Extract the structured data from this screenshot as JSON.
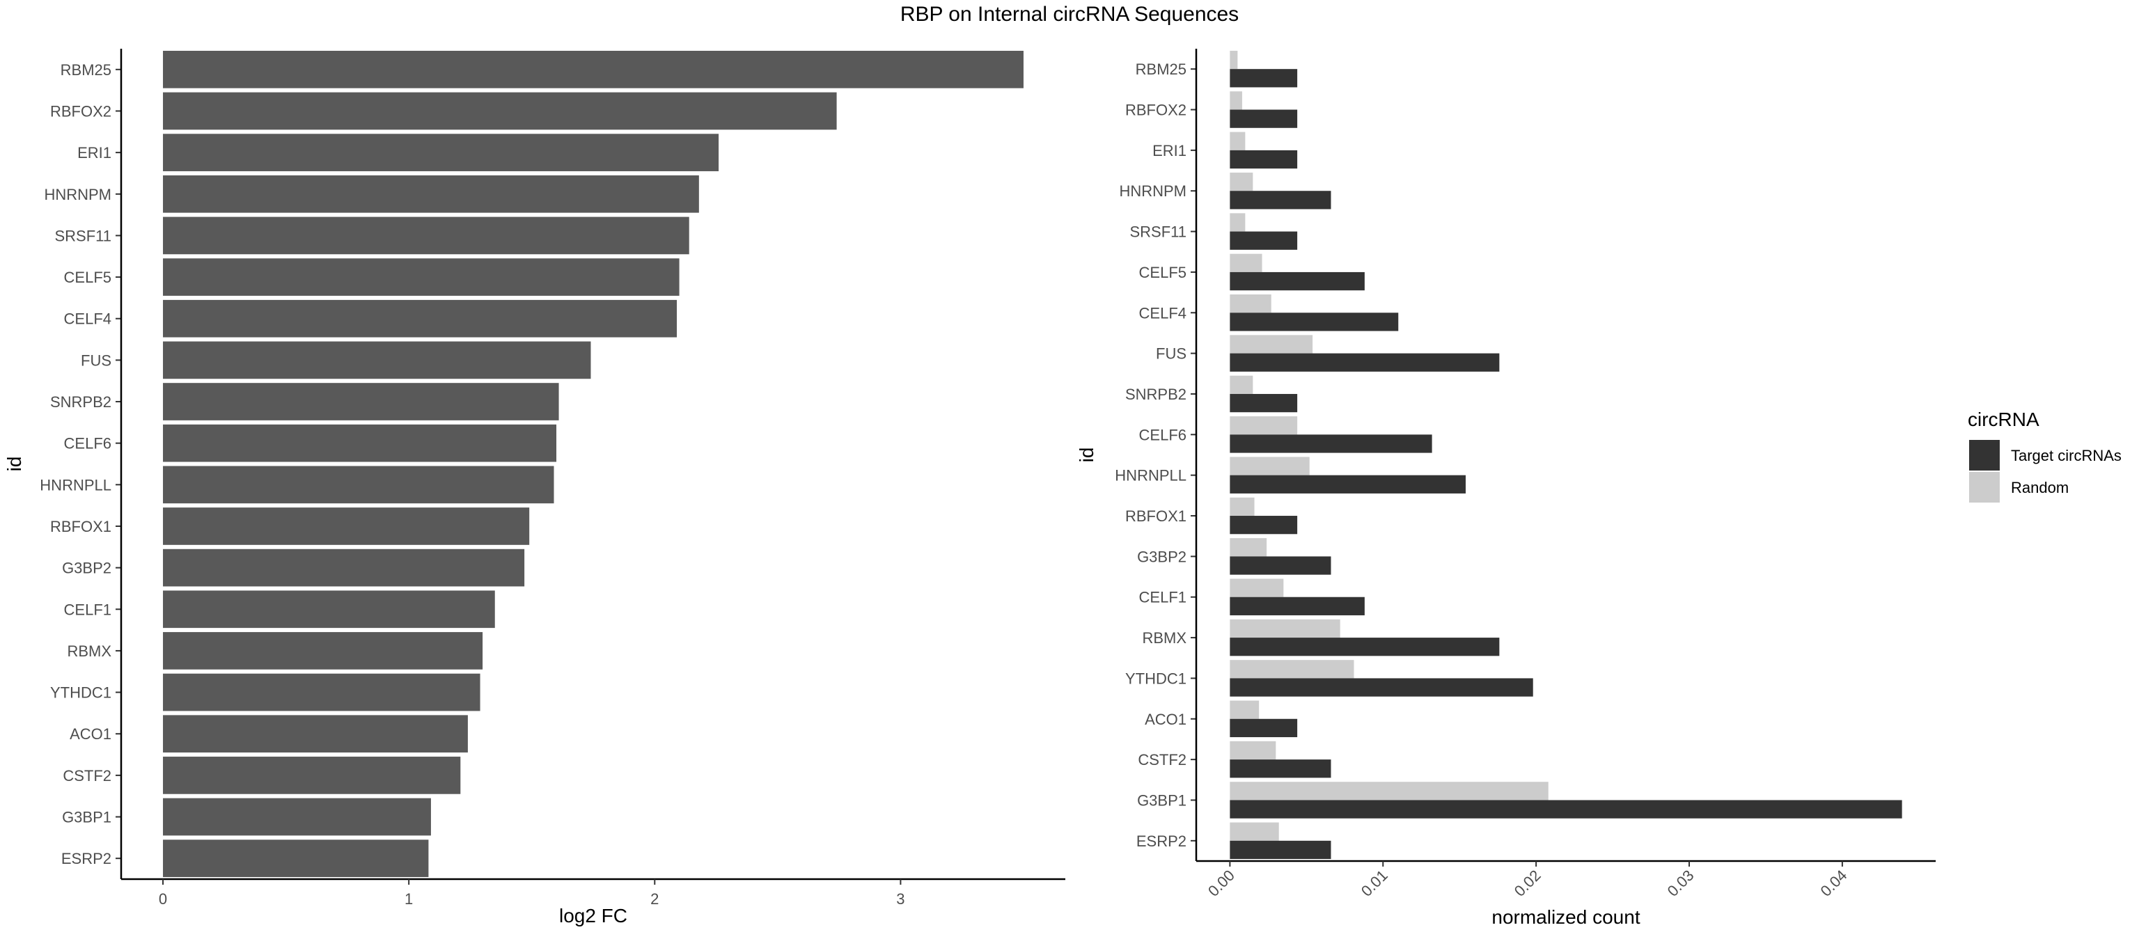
{
  "chart_data": {
    "title": "RBP on Internal circRNA Sequences",
    "panels": [
      {
        "type": "bar",
        "orientation": "horizontal",
        "categories": [
          "RBM25",
          "RBFOX2",
          "ERI1",
          "HNRNPM",
          "SRSF11",
          "CELF5",
          "CELF4",
          "FUS",
          "SNRPB2",
          "CELF6",
          "HNRNPLL",
          "RBFOX1",
          "G3BP2",
          "CELF1",
          "RBMX",
          "YTHDC1",
          "ACO1",
          "CSTF2",
          "G3BP1",
          "ESRP2"
        ],
        "series": [
          {
            "values": [
              3.5,
              2.74,
              2.26,
              2.18,
              2.14,
              2.1,
              2.09,
              1.74,
              1.61,
              1.6,
              1.59,
              1.49,
              1.47,
              1.35,
              1.3,
              1.29,
              1.24,
              1.21,
              1.09,
              1.08
            ],
            "color": "#595959"
          }
        ],
        "xlabel": "log2 FC",
        "ylabel": "id",
        "xlim": [
          -0.17,
          3.67
        ],
        "xticks": [
          "0",
          "1",
          "2",
          "3"
        ],
        "grid": false
      },
      {
        "type": "bar",
        "orientation": "horizontal",
        "grouped": true,
        "categories": [
          "RBM25",
          "RBFOX2",
          "ERI1",
          "HNRNPM",
          "SRSF11",
          "CELF5",
          "CELF4",
          "FUS",
          "SNRPB2",
          "CELF6",
          "HNRNPLL",
          "RBFOX1",
          "G3BP2",
          "CELF1",
          "RBMX",
          "YTHDC1",
          "ACO1",
          "CSTF2",
          "G3BP1",
          "ESRP2"
        ],
        "series": [
          {
            "name": "Target circRNAs",
            "color": "#333333",
            "values": [
              0.0044,
              0.0044,
              0.0044,
              0.0066,
              0.0044,
              0.0088,
              0.011,
              0.0176,
              0.0044,
              0.0132,
              0.0154,
              0.0044,
              0.0066,
              0.0088,
              0.0176,
              0.0198,
              0.0044,
              0.0066,
              0.0439,
              0.0066
            ]
          },
          {
            "name": "Random",
            "color": "#cccccc",
            "values": [
              0.0005,
              0.0008,
              0.001,
              0.0015,
              0.001,
              0.0021,
              0.0027,
              0.0054,
              0.0015,
              0.0044,
              0.0052,
              0.0016,
              0.0024,
              0.0035,
              0.0072,
              0.0081,
              0.0019,
              0.003,
              0.0208,
              0.0032
            ]
          }
        ],
        "xlabel": "normalized count",
        "ylabel": "id",
        "xlim": [
          -0.0022,
          0.0461
        ],
        "xticks": [
          "0.00",
          "0.01",
          "0.02",
          "0.03",
          "0.04"
        ],
        "legend": {
          "title": "circRNA",
          "position": "right"
        },
        "grid": false
      }
    ]
  }
}
